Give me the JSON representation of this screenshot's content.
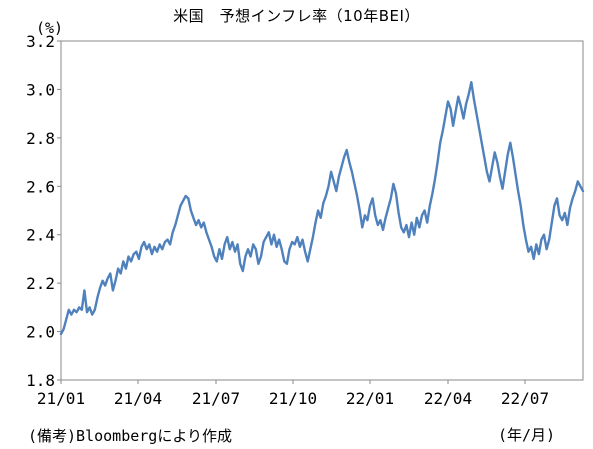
{
  "chart_data": {
    "type": "line",
    "title": "米国　予想インフレ率（10年BEI）",
    "unit_label": "(%)",
    "xunit_label": "(年/月)",
    "source_note": "(備考)Bloombergにより作成",
    "ylim": [
      1.8,
      3.2
    ],
    "yticks": [
      "1.8",
      "2.0",
      "2.2",
      "2.4",
      "2.6",
      "2.8",
      "3.0",
      "3.2"
    ],
    "xticks": [
      "21/01",
      "21/04",
      "21/07",
      "21/10",
      "22/01",
      "22/04",
      "22/07"
    ],
    "grid": false,
    "line_color": "#4f81bd",
    "series": [
      {
        "values": [
          1.99,
          2.01,
          2.05,
          2.09,
          2.07,
          2.09,
          2.08,
          2.1,
          2.09,
          2.17,
          2.08,
          2.1,
          2.07,
          2.09,
          2.14,
          2.18,
          2.21,
          2.19,
          2.22,
          2.24,
          2.17,
          2.21,
          2.26,
          2.24,
          2.29,
          2.26,
          2.31,
          2.29,
          2.32,
          2.33,
          2.3,
          2.35,
          2.37,
          2.34,
          2.36,
          2.32,
          2.35,
          2.33,
          2.36,
          2.34,
          2.37,
          2.38,
          2.36,
          2.41,
          2.44,
          2.48,
          2.52,
          2.54,
          2.56,
          2.55,
          2.5,
          2.47,
          2.44,
          2.46,
          2.43,
          2.45,
          2.41,
          2.38,
          2.35,
          2.31,
          2.29,
          2.34,
          2.3,
          2.36,
          2.39,
          2.34,
          2.37,
          2.33,
          2.36,
          2.28,
          2.25,
          2.31,
          2.34,
          2.31,
          2.36,
          2.34,
          2.28,
          2.31,
          2.37,
          2.39,
          2.41,
          2.36,
          2.4,
          2.35,
          2.38,
          2.34,
          2.29,
          2.28,
          2.34,
          2.37,
          2.36,
          2.39,
          2.35,
          2.38,
          2.33,
          2.29,
          2.34,
          2.39,
          2.45,
          2.5,
          2.47,
          2.53,
          2.56,
          2.6,
          2.66,
          2.62,
          2.58,
          2.64,
          2.68,
          2.72,
          2.75,
          2.7,
          2.66,
          2.61,
          2.56,
          2.5,
          2.43,
          2.48,
          2.46,
          2.52,
          2.55,
          2.48,
          2.44,
          2.46,
          2.42,
          2.47,
          2.51,
          2.55,
          2.61,
          2.57,
          2.49,
          2.43,
          2.41,
          2.44,
          2.39,
          2.45,
          2.4,
          2.47,
          2.43,
          2.48,
          2.5,
          2.45,
          2.52,
          2.57,
          2.63,
          2.7,
          2.78,
          2.83,
          2.89,
          2.95,
          2.92,
          2.85,
          2.91,
          2.97,
          2.93,
          2.88,
          2.94,
          2.98,
          3.03,
          2.96,
          2.9,
          2.84,
          2.78,
          2.72,
          2.66,
          2.62,
          2.68,
          2.74,
          2.7,
          2.64,
          2.59,
          2.66,
          2.73,
          2.78,
          2.72,
          2.65,
          2.58,
          2.52,
          2.44,
          2.38,
          2.33,
          2.35,
          2.3,
          2.36,
          2.32,
          2.38,
          2.4,
          2.34,
          2.38,
          2.45,
          2.52,
          2.55,
          2.48,
          2.46,
          2.49,
          2.44,
          2.51,
          2.55,
          2.58,
          2.62,
          2.6,
          2.58
        ]
      }
    ]
  }
}
